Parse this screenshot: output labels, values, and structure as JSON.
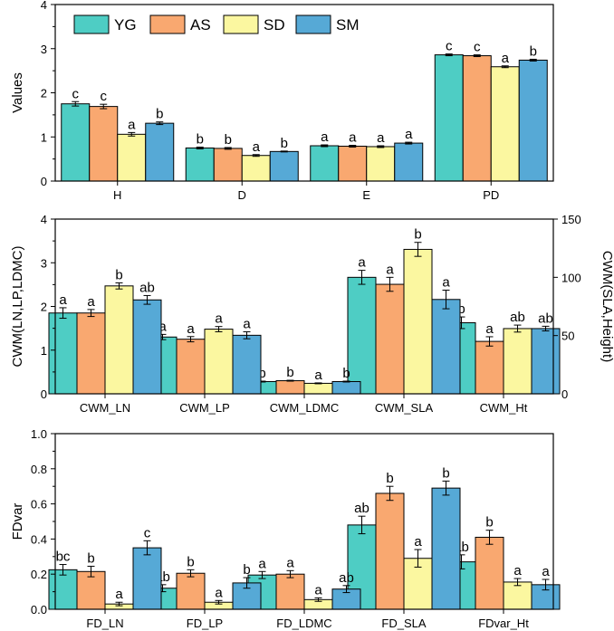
{
  "legend": [
    "YG",
    "AS",
    "SD",
    "SM"
  ],
  "colors": {
    "YG": "#4ECDC4",
    "AS": "#F9A870",
    "SD": "#FBF7A0",
    "SM": "#56A9D6"
  },
  "chart_data": [
    {
      "type": "bar",
      "ylabel": "Values",
      "ylim": [
        0,
        4
      ],
      "yticks": [
        "0",
        "1",
        "2",
        "3",
        "4"
      ],
      "categories": [
        "H",
        "D",
        "E",
        "PD"
      ],
      "series": [
        {
          "name": "YG",
          "values": [
            1.75,
            0.75,
            0.8,
            2.86
          ],
          "errors": [
            0.05,
            0.02,
            0.02,
            0.02
          ],
          "letters": [
            "c",
            "b",
            "a",
            "c"
          ]
        },
        {
          "name": "AS",
          "values": [
            1.69,
            0.74,
            0.79,
            2.84
          ],
          "errors": [
            0.05,
            0.02,
            0.02,
            0.02
          ],
          "letters": [
            "c",
            "b",
            "a",
            "c"
          ]
        },
        {
          "name": "SD",
          "values": [
            1.06,
            0.58,
            0.78,
            2.59
          ],
          "errors": [
            0.04,
            0.02,
            0.02,
            0.02
          ],
          "letters": [
            "a",
            "a",
            "a",
            "a"
          ]
        },
        {
          "name": "SM",
          "values": [
            1.31,
            0.67,
            0.86,
            2.74
          ],
          "errors": [
            0.03,
            0.01,
            0.02,
            0.02
          ],
          "letters": [
            "b",
            "b",
            "a",
            "b"
          ]
        }
      ]
    },
    {
      "type": "bar",
      "ylabel": "CWM(LN,LP,LDMC)",
      "ylabel_right": "CWM(SLA,Height)",
      "ylim": [
        0,
        4
      ],
      "yticks": [
        "0",
        "1",
        "2",
        "3",
        "4"
      ],
      "ylim_right": [
        0,
        150
      ],
      "yticks_right": [
        "0",
        "50",
        "100",
        "150"
      ],
      "categories": [
        "CWM_LN",
        "CWM_LP",
        "CWM_LDMC",
        "CWM_SLA",
        "CWM_Ht"
      ],
      "secondary_axis_categories": [
        "CWM_SLA",
        "CWM_Ht"
      ],
      "series": [
        {
          "name": "YG",
          "values": [
            1.85,
            1.3,
            0.28,
            100,
            61
          ],
          "errors": [
            0.12,
            0.06,
            0.01,
            6,
            5
          ],
          "letters": [
            "a",
            "a",
            "b",
            "a",
            "b"
          ]
        },
        {
          "name": "AS",
          "values": [
            1.85,
            1.25,
            0.3,
            94,
            45
          ],
          "errors": [
            0.08,
            0.06,
            0.01,
            6,
            4
          ],
          "letters": [
            "a",
            "a",
            "b",
            "a",
            "a"
          ]
        },
        {
          "name": "SD",
          "values": [
            2.47,
            1.48,
            0.24,
            124,
            56
          ],
          "errors": [
            0.07,
            0.06,
            0.01,
            6,
            3
          ],
          "letters": [
            "b",
            "a",
            "a",
            "b",
            "ab"
          ]
        },
        {
          "name": "SM",
          "values": [
            2.15,
            1.34,
            0.28,
            81,
            56
          ],
          "errors": [
            0.1,
            0.08,
            0.01,
            8,
            2
          ],
          "letters": [
            "ab",
            "a",
            "b",
            "a",
            "ab"
          ]
        }
      ]
    },
    {
      "type": "bar",
      "ylabel": "FDvar",
      "ylim": [
        0,
        1.0
      ],
      "yticks": [
        "0.0",
        "0.2",
        "0.4",
        "0.6",
        "0.8",
        "1.0"
      ],
      "categories": [
        "FD_LN",
        "FD_LP",
        "FD_LDMC",
        "FD_SLA",
        "FDvar_Ht"
      ],
      "series": [
        {
          "name": "YG",
          "values": [
            0.225,
            0.12,
            0.195,
            0.48,
            0.27
          ],
          "errors": [
            0.03,
            0.02,
            0.02,
            0.05,
            0.04
          ],
          "letters": [
            "bc",
            "ab",
            "a",
            "ab",
            "ab"
          ]
        },
        {
          "name": "AS",
          "values": [
            0.215,
            0.205,
            0.2,
            0.66,
            0.41
          ],
          "errors": [
            0.03,
            0.02,
            0.02,
            0.04,
            0.04
          ],
          "letters": [
            "b",
            "b",
            "a",
            "b",
            "b"
          ]
        },
        {
          "name": "SD",
          "values": [
            0.03,
            0.04,
            0.055,
            0.29,
            0.155
          ],
          "errors": [
            0.01,
            0.01,
            0.01,
            0.05,
            0.02
          ],
          "letters": [
            "a",
            "a",
            "a",
            "a",
            "a"
          ]
        },
        {
          "name": "SM",
          "values": [
            0.35,
            0.15,
            0.115,
            0.69,
            0.14
          ],
          "errors": [
            0.04,
            0.03,
            0.02,
            0.04,
            0.03
          ],
          "letters": [
            "c",
            "b",
            "ab",
            "b",
            "a"
          ]
        }
      ]
    }
  ]
}
